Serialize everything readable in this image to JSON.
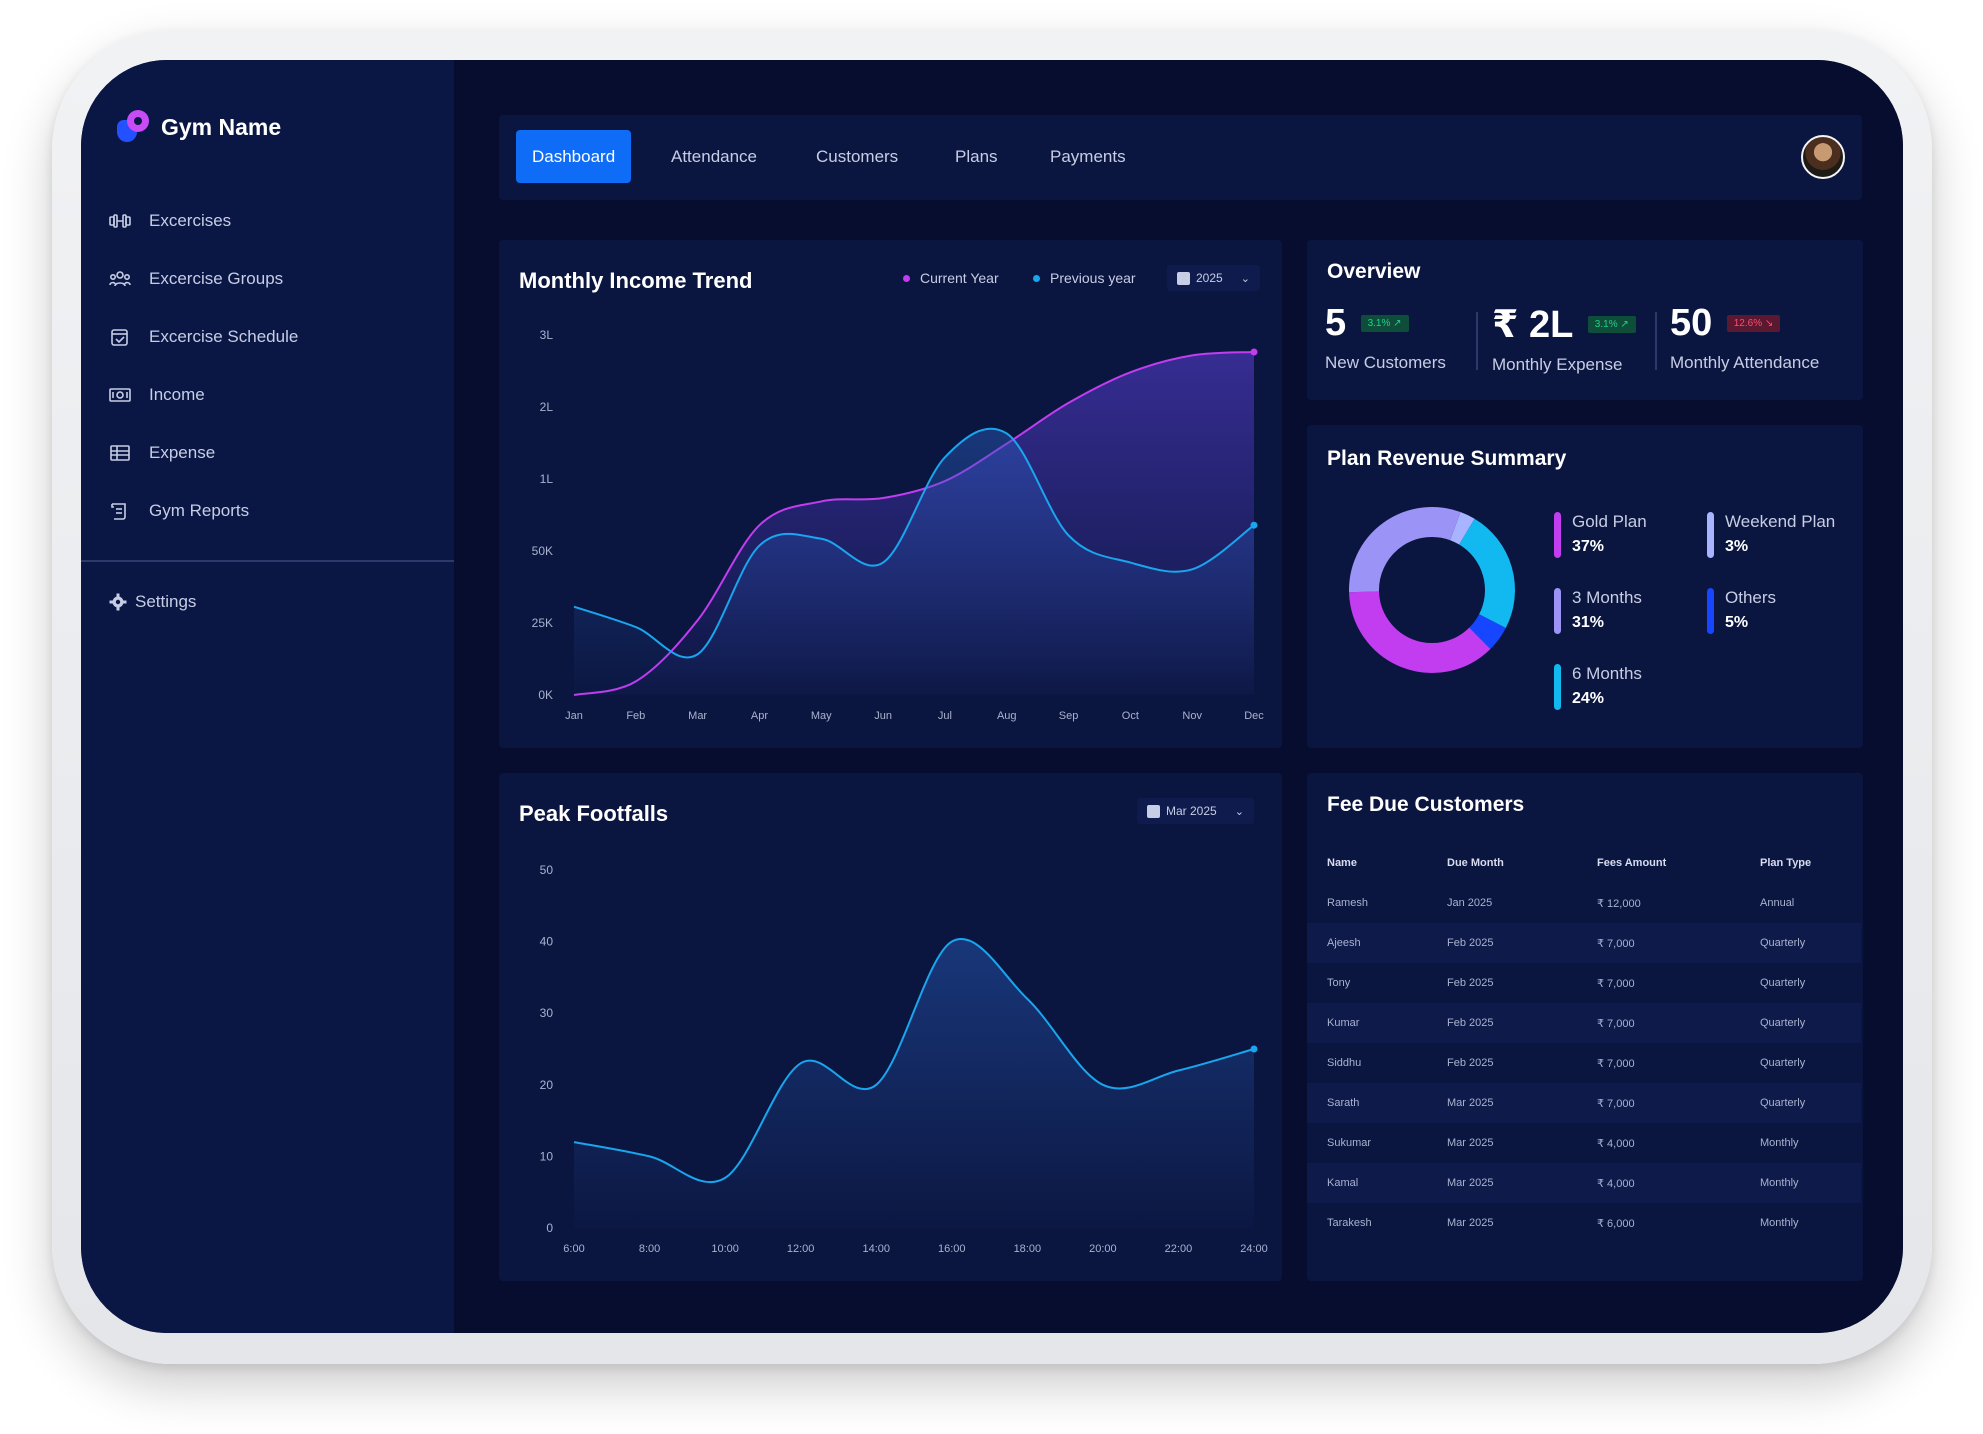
{
  "brand": {
    "name": "Gym Name"
  },
  "sidebar": {
    "items": [
      {
        "label": "Excercises",
        "icon": "dumbbell-icon"
      },
      {
        "label": "Excercise Groups",
        "icon": "group-icon"
      },
      {
        "label": "Excercise Schedule",
        "icon": "calendar-check-icon"
      },
      {
        "label": "Income",
        "icon": "cash-icon"
      },
      {
        "label": "Expense",
        "icon": "ledger-icon"
      },
      {
        "label": "Gym Reports",
        "icon": "report-icon"
      }
    ],
    "settings": {
      "label": "Settings",
      "icon": "gear-icon"
    }
  },
  "topbar": {
    "tabs": [
      {
        "label": "Dashboard",
        "active": true
      },
      {
        "label": "Attendance",
        "active": false
      },
      {
        "label": "Customers",
        "active": false
      },
      {
        "label": "Plans",
        "active": false
      },
      {
        "label": "Payments",
        "active": false
      }
    ],
    "avatar_icon": "user-avatar"
  },
  "income_trend": {
    "title": "Monthly Income Trend",
    "legend_current": "Current Year",
    "legend_previous": "Previous year",
    "year_select": "2025",
    "colors": {
      "current": "#c23cf0",
      "previous": "#19a6ee"
    }
  },
  "peak_footfalls": {
    "title": "Peak Footfalls",
    "month_select": "Mar 2025"
  },
  "overview": {
    "title": "Overview",
    "stats": [
      {
        "value": "5",
        "badge": "3.1% ↗",
        "trend": "up",
        "label": "New Customers"
      },
      {
        "value": "₹ 2L",
        "badge": "3.1% ↗",
        "trend": "up",
        "label": "Monthly Expense"
      },
      {
        "value": "50",
        "badge": "12.6% ↘",
        "trend": "down",
        "label": "Monthly Attendance"
      }
    ]
  },
  "plan_revenue": {
    "title": "Plan Revenue Summary",
    "plans": [
      {
        "label": "Gold Plan",
        "pct": "37%",
        "value": 37,
        "color": "#c23cf0"
      },
      {
        "label": "Weekend Plan",
        "pct": "3%",
        "value": 3,
        "color": "#a8b4ff"
      },
      {
        "label": "3 Months",
        "pct": "31%",
        "value": 31,
        "color": "#9b93f5"
      },
      {
        "label": "Others",
        "pct": "5%",
        "value": 5,
        "color": "#1646ff"
      },
      {
        "label": "6 Months",
        "pct": "24%",
        "value": 24,
        "color": "#12b8f0"
      }
    ]
  },
  "fee_due": {
    "title": "Fee Due Customers",
    "columns": [
      "Name",
      "Due Month",
      "Fees Amount",
      "Plan Type"
    ],
    "rows": [
      [
        "Ramesh",
        "Jan 2025",
        "₹ 12,000",
        "Annual"
      ],
      [
        "Ajeesh",
        "Feb 2025",
        "₹ 7,000",
        "Quarterly"
      ],
      [
        "Tony",
        "Feb 2025",
        "₹ 7,000",
        "Quarterly"
      ],
      [
        "Kumar",
        "Feb 2025",
        "₹ 7,000",
        "Quarterly"
      ],
      [
        "Siddhu",
        "Feb 2025",
        "₹ 7,000",
        "Quarterly"
      ],
      [
        "Sarath",
        "Mar 2025",
        "₹ 7,000",
        "Quarterly"
      ],
      [
        "Sukumar",
        "Mar 2025",
        "₹ 4,000",
        "Monthly"
      ],
      [
        "Kamal",
        "Mar 2025",
        "₹ 4,000",
        "Monthly"
      ],
      [
        "Tarakesh",
        "Mar 2025",
        "₹ 6,000",
        "Monthly"
      ]
    ]
  },
  "chart_data": [
    {
      "type": "area",
      "title": "Monthly Income Trend",
      "categories": [
        "Jan",
        "Feb",
        "Mar",
        "Apr",
        "May",
        "Jun",
        "Jul",
        "Aug",
        "Sep",
        "Oct",
        "Nov",
        "Dec"
      ],
      "y_ticks": [
        "0K",
        "25K",
        "50K",
        "1L",
        "2L",
        "3L"
      ],
      "series": [
        {
          "name": "Current Year",
          "values": [
            0,
            0.2,
            1.1,
            2.5,
            2.85,
            2.9,
            3.15,
            3.7,
            4.3,
            4.75,
            5.0,
            5.05
          ],
          "color": "#c23cf0"
        },
        {
          "name": "Previous year",
          "values": [
            1.3,
            1.0,
            0.6,
            2.2,
            2.3,
            1.95,
            3.5,
            3.85,
            2.35,
            1.95,
            1.85,
            2.5
          ],
          "color": "#19a6ee"
        }
      ],
      "ylim": [
        0,
        5.3
      ]
    },
    {
      "type": "area",
      "title": "Peak Footfalls",
      "categories": [
        "6:00",
        "8:00",
        "10:00",
        "12:00",
        "14:00",
        "16:00",
        "18:00",
        "20:00",
        "22:00",
        "24:00"
      ],
      "values": [
        12,
        10,
        7,
        23,
        20,
        40,
        32,
        20,
        22,
        25
      ],
      "y_ticks": [
        "0",
        "10",
        "20",
        "30",
        "40",
        "50"
      ],
      "ylim": [
        0,
        50
      ],
      "color": "#19a6ee"
    }
  ]
}
